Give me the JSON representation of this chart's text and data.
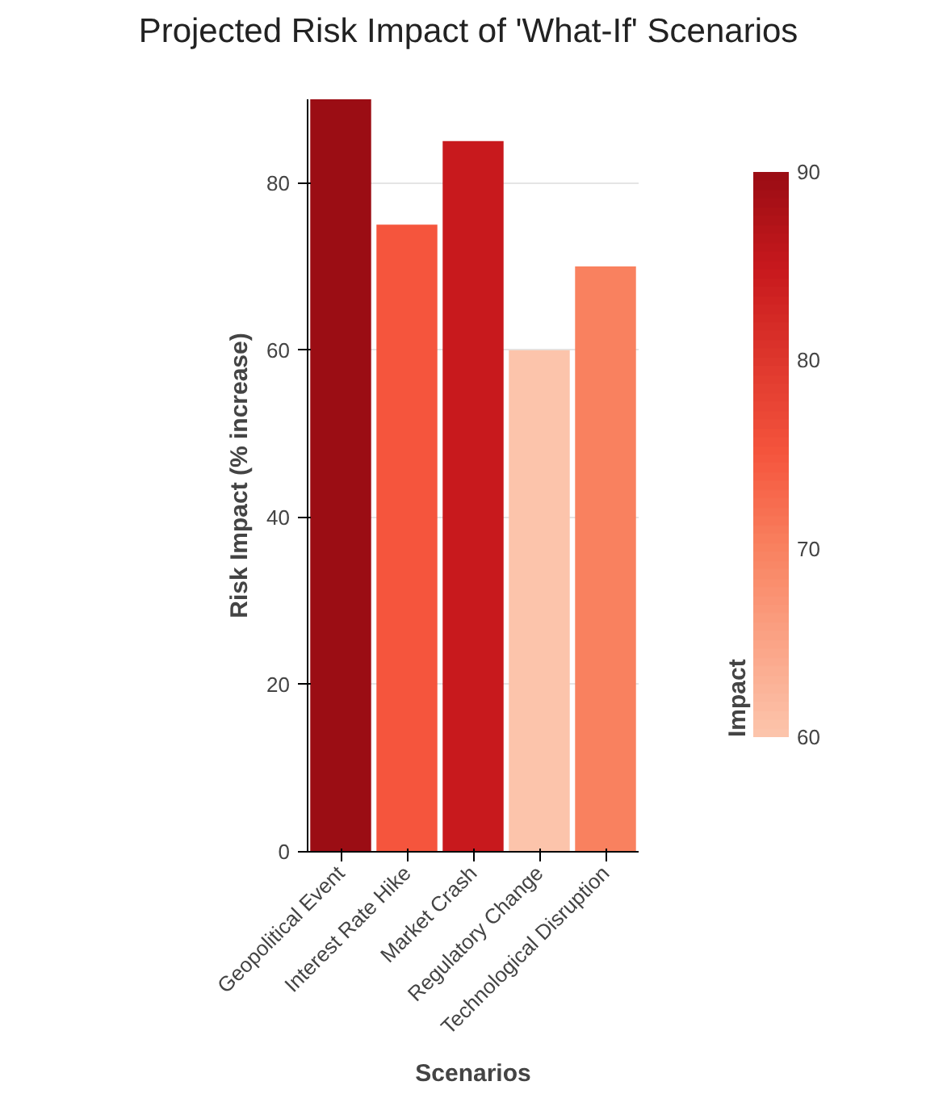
{
  "chart_data": {
    "type": "bar",
    "title": "Projected Risk Impact of 'What-If' Scenarios",
    "xlabel": "Scenarios",
    "ylabel": "Risk Impact (% increase)",
    "clabel": "Impact",
    "categories": [
      "Geopolitical Event",
      "Interest Rate Hike",
      "Market Crash",
      "Regulatory Change",
      "Technological Disruption"
    ],
    "values": [
      90,
      75,
      85,
      60,
      70
    ],
    "colors": [
      "#9b0d14",
      "#f5553d",
      "#c8191d",
      "#fcc4ab",
      "#f9815f"
    ],
    "ylim": [
      0,
      90
    ],
    "yticks": [
      0,
      20,
      40,
      60,
      80
    ],
    "clim": [
      60,
      90
    ],
    "cticks": [
      60,
      70,
      80,
      90
    ],
    "grid": "y"
  }
}
